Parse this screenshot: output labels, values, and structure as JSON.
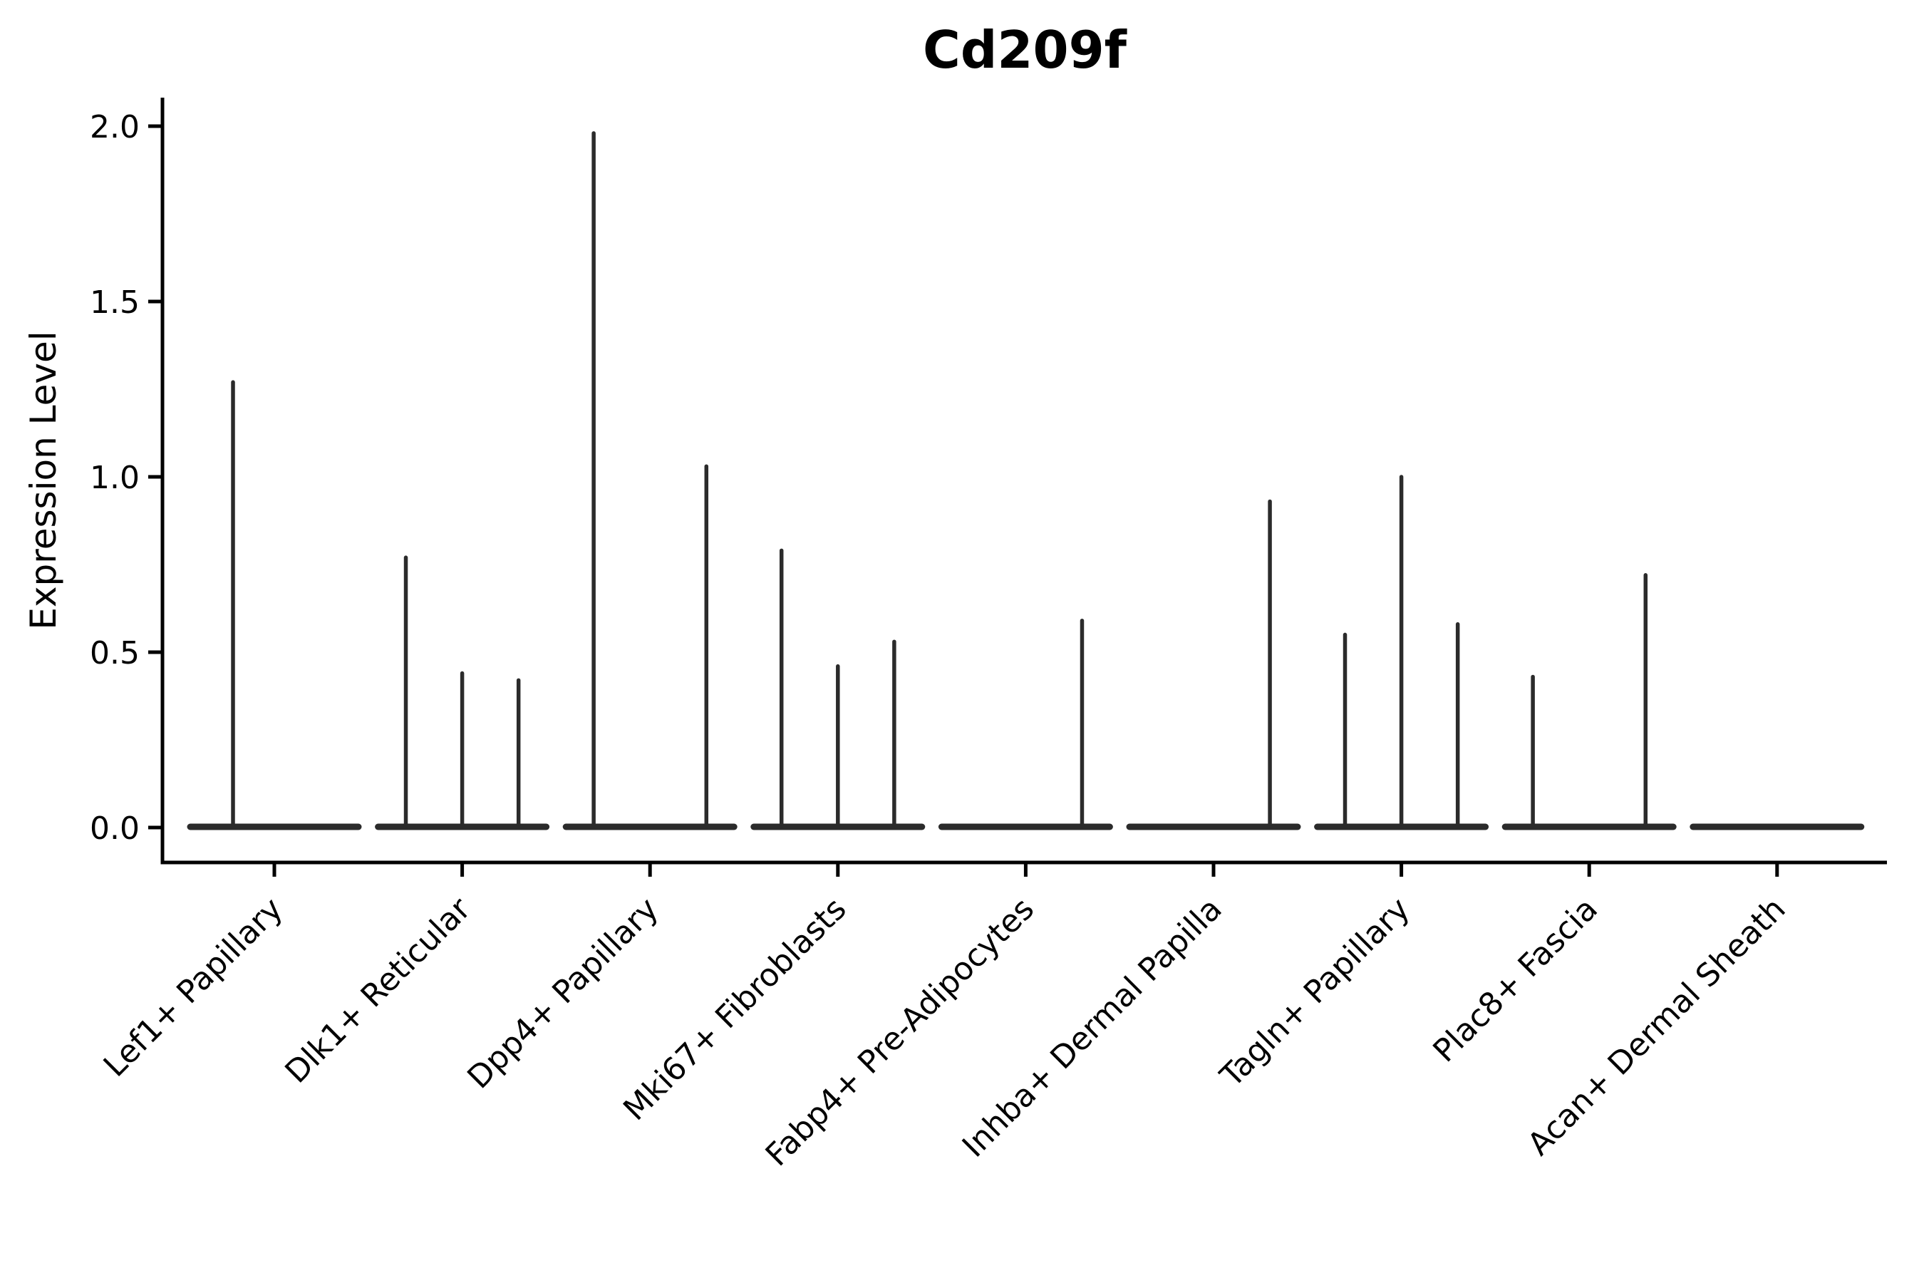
{
  "colors": {
    "background": "#ffffff",
    "axis": "#000000",
    "text": "#000000",
    "violin": "#2b2b2b"
  },
  "chart_data": {
    "type": "violin",
    "title": "Cd209f",
    "xlabel": "",
    "ylabel": "Expression Level",
    "ylim": [
      -0.1,
      2.08
    ],
    "grid": false,
    "legend": "none",
    "yticks": [
      {
        "value": 0.0,
        "label": "0.0"
      },
      {
        "value": 0.5,
        "label": "0.5"
      },
      {
        "value": 1.0,
        "label": "1.0"
      },
      {
        "value": 1.5,
        "label": "1.5"
      },
      {
        "value": 2.0,
        "label": "2.0"
      }
    ],
    "categories": [
      "Lef1+ Papillary",
      "Dlk1+ Reticular",
      "Dpp4+ Papillary",
      "Mki67+ Fibroblasts",
      "Fabp4+ Pre-Adipocytes",
      "Inhba+ Dermal Papilla",
      "Tagln+ Papillary",
      "Plac8+ Fascia",
      "Acan+ Dermal Sheath"
    ],
    "series": [
      {
        "category": "Lef1+ Papillary",
        "spikes": [
          {
            "offset": -0.22,
            "max": 1.27
          }
        ]
      },
      {
        "category": "Dlk1+ Reticular",
        "spikes": [
          {
            "offset": -0.3,
            "max": 0.77
          },
          {
            "offset": 0.0,
            "max": 0.44
          },
          {
            "offset": 0.3,
            "max": 0.42
          }
        ]
      },
      {
        "category": "Dpp4+ Papillary",
        "spikes": [
          {
            "offset": -0.3,
            "max": 1.98
          },
          {
            "offset": 0.3,
            "max": 1.03
          }
        ]
      },
      {
        "category": "Mki67+ Fibroblasts",
        "spikes": [
          {
            "offset": -0.3,
            "max": 0.79
          },
          {
            "offset": 0.0,
            "max": 0.46
          },
          {
            "offset": 0.3,
            "max": 0.53
          }
        ]
      },
      {
        "category": "Fabp4+ Pre-Adipocytes",
        "spikes": [
          {
            "offset": 0.3,
            "max": 0.59
          }
        ]
      },
      {
        "category": "Inhba+ Dermal Papilla",
        "spikes": [
          {
            "offset": 0.3,
            "max": 0.93
          }
        ]
      },
      {
        "category": "Tagln+ Papillary",
        "spikes": [
          {
            "offset": -0.3,
            "max": 0.55
          },
          {
            "offset": 0.0,
            "max": 1.0
          },
          {
            "offset": 0.3,
            "max": 0.58
          }
        ]
      },
      {
        "category": "Plac8+ Fascia",
        "spikes": [
          {
            "offset": -0.3,
            "max": 0.43
          },
          {
            "offset": 0.3,
            "max": 0.72
          }
        ]
      },
      {
        "category": "Acan+ Dermal Sheath",
        "spikes": []
      }
    ],
    "note": "Each category shows flat violins at 0 expression with thin vertical max-value spikes; no visible points above the flattened violin bodies."
  }
}
